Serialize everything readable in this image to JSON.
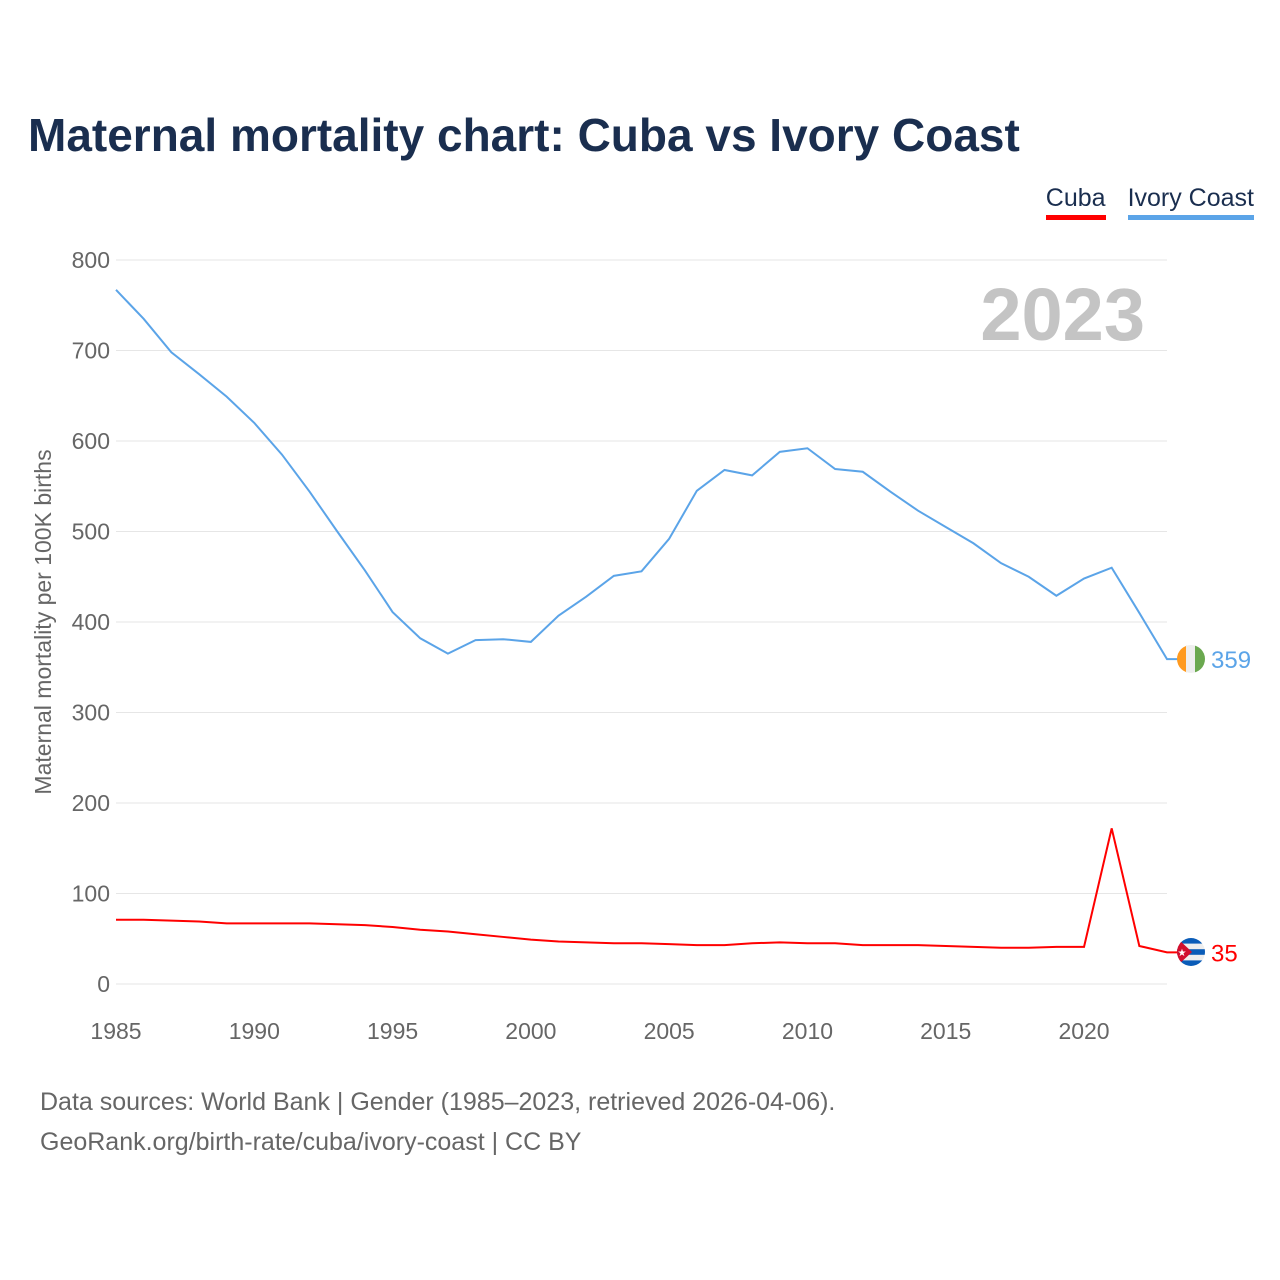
{
  "title": "Maternal mortality chart: Cuba vs Ivory Coast",
  "year_watermark": "2023",
  "footer": {
    "line1": "Data sources: World Bank | Gender (1985–2023, retrieved 2026-04-06).",
    "line2": "GeoRank.org/birth-rate/cuba/ivory-coast | CC BY"
  },
  "chart_data": {
    "type": "line",
    "title": "Maternal mortality chart: Cuba vs Ivory Coast",
    "xlabel": "",
    "ylabel": "Maternal mortality per 100K births",
    "xlim": [
      1985,
      2023
    ],
    "ylim": [
      0,
      800
    ],
    "yticks": [
      0,
      100,
      200,
      300,
      400,
      500,
      600,
      700,
      800
    ],
    "xticks": [
      1985,
      1990,
      1995,
      2000,
      2005,
      2010,
      2015,
      2020
    ],
    "grid": true,
    "legend_position": "top-right",
    "x": [
      1985,
      1986,
      1987,
      1988,
      1989,
      1990,
      1991,
      1992,
      1993,
      1994,
      1995,
      1996,
      1997,
      1998,
      1999,
      2000,
      2001,
      2002,
      2003,
      2004,
      2005,
      2006,
      2007,
      2008,
      2009,
      2010,
      2011,
      2012,
      2013,
      2014,
      2015,
      2016,
      2017,
      2018,
      2019,
      2020,
      2021,
      2022,
      2023
    ],
    "series": [
      {
        "name": "Cuba",
        "color": "#ff0000",
        "end_label": "35",
        "values": [
          71,
          71,
          70,
          69,
          67,
          67,
          67,
          67,
          66,
          65,
          63,
          60,
          58,
          55,
          52,
          49,
          47,
          46,
          45,
          45,
          44,
          43,
          43,
          45,
          46,
          45,
          45,
          43,
          43,
          43,
          42,
          41,
          40,
          40,
          41,
          41,
          172,
          42,
          35
        ]
      },
      {
        "name": "Ivory Coast",
        "color": "#5ba4e8",
        "end_label": "359",
        "values": [
          767,
          735,
          698,
          674,
          649,
          620,
          585,
          544,
          500,
          457,
          411,
          382,
          365,
          380,
          381,
          378,
          407,
          428,
          451,
          456,
          492,
          545,
          568,
          562,
          588,
          592,
          569,
          566,
          544,
          523,
          505,
          487,
          465,
          450,
          429,
          448,
          460,
          410,
          359
        ]
      }
    ]
  }
}
